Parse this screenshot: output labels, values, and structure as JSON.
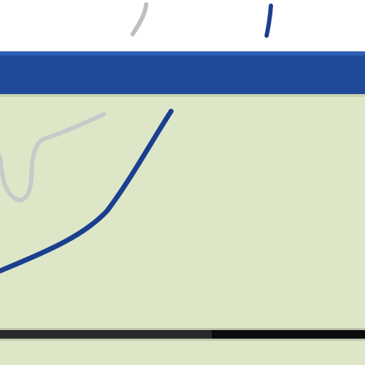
{
  "window": {
    "title": ""
  },
  "progress": {
    "value": 0.58
  },
  "colors": {
    "titlebar": "#1f4a9a",
    "panel": "#dde7c8",
    "curve_primary": "#1b3f8f",
    "curve_secondary": "#c9c9c9"
  },
  "icons": {
    "top_marks": [
      "pen-stroke-icon",
      "pen-stroke-icon"
    ]
  }
}
